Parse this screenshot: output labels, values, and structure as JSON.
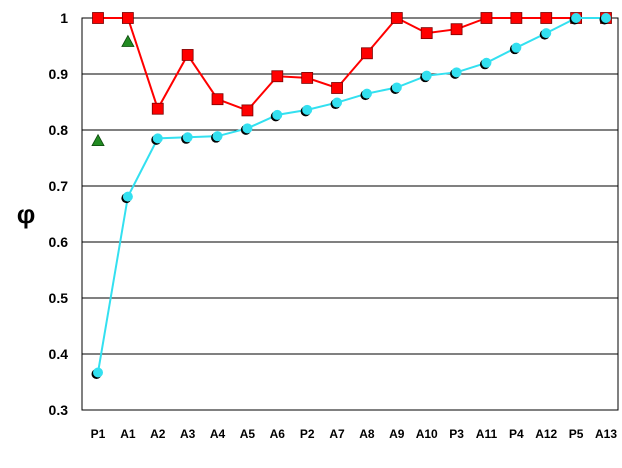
{
  "chart_data": {
    "type": "line",
    "title": "",
    "xlabel": "",
    "ylabel": "φ",
    "ylim": [
      0.3,
      1.0
    ],
    "yticks": [
      0.3,
      0.4,
      0.5,
      0.6,
      0.7,
      0.8,
      0.9,
      1.0
    ],
    "grid": true,
    "legend": "none",
    "categories": [
      "P1",
      "A1",
      "A2",
      "A3",
      "A4",
      "A5",
      "A6",
      "P2",
      "A7",
      "A8",
      "A9",
      "A10",
      "P3",
      "A11",
      "P4",
      "A12",
      "P5",
      "A13"
    ],
    "series": [
      {
        "marker": "square",
        "color": "#ff0000",
        "values": [
          1.0,
          1.0,
          0.838,
          0.934,
          0.855,
          0.835,
          0.896,
          0.893,
          0.875,
          0.937,
          1.0,
          0.973,
          0.98,
          1.0,
          1.0,
          1.0,
          1.0,
          1.0
        ]
      },
      {
        "marker": "circle",
        "color": "#33e0f0",
        "values": [
          0.367,
          0.681,
          0.785,
          0.787,
          0.789,
          0.803,
          0.827,
          0.836,
          0.849,
          0.865,
          0.876,
          0.897,
          0.903,
          0.92,
          0.947,
          0.973,
          1.0,
          1.0
        ]
      },
      {
        "marker": "triangle",
        "color": "#228b22",
        "line": false,
        "points": [
          {
            "x": "P1",
            "y": 0.781
          },
          {
            "x": "A1",
            "y": 0.958
          }
        ]
      }
    ]
  }
}
